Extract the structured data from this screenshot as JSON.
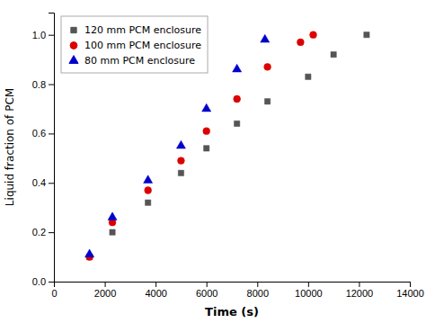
{
  "chart_data": {
    "type": "scatter",
    "xlabel": "Time (s)",
    "ylabel": "Liquid fraction of PCM",
    "xlim": [
      0,
      14000
    ],
    "ylim": [
      0.0,
      1.09
    ],
    "xticks": [
      0,
      2000,
      4000,
      6000,
      8000,
      10000,
      12000,
      14000
    ],
    "yticks": [
      {
        "value": 0.0,
        "label": "0.0"
      },
      0.2,
      0.4,
      0.6,
      0.8,
      {
        "value": 1.0,
        "label": "1.0"
      }
    ],
    "grid": false,
    "legend": "upper left",
    "series": [
      {
        "name": "120 mm PCM enclosure",
        "color": "#555555",
        "marker": "square",
        "x": [
          1400,
          2300,
          3700,
          5000,
          6000,
          7200,
          8400,
          10000,
          11000,
          12300
        ],
        "values": [
          0.1,
          0.2,
          0.32,
          0.44,
          0.54,
          0.64,
          0.73,
          0.83,
          0.92,
          1.0
        ]
      },
      {
        "name": "100 mm PCM enclosure",
        "color": "#dd0000",
        "marker": "circle",
        "x": [
          1400,
          2300,
          3700,
          5000,
          6000,
          7200,
          8400,
          9700,
          10200
        ],
        "values": [
          0.1,
          0.24,
          0.37,
          0.49,
          0.61,
          0.74,
          0.87,
          0.97,
          1.0
        ]
      },
      {
        "name": "80 mm PCM enclosure",
        "color": "#0000cc",
        "marker": "triangle",
        "x": [
          1400,
          2300,
          3700,
          5000,
          6000,
          7200,
          8300
        ],
        "values": [
          0.11,
          0.26,
          0.41,
          0.55,
          0.7,
          0.86,
          0.98
        ]
      }
    ]
  }
}
